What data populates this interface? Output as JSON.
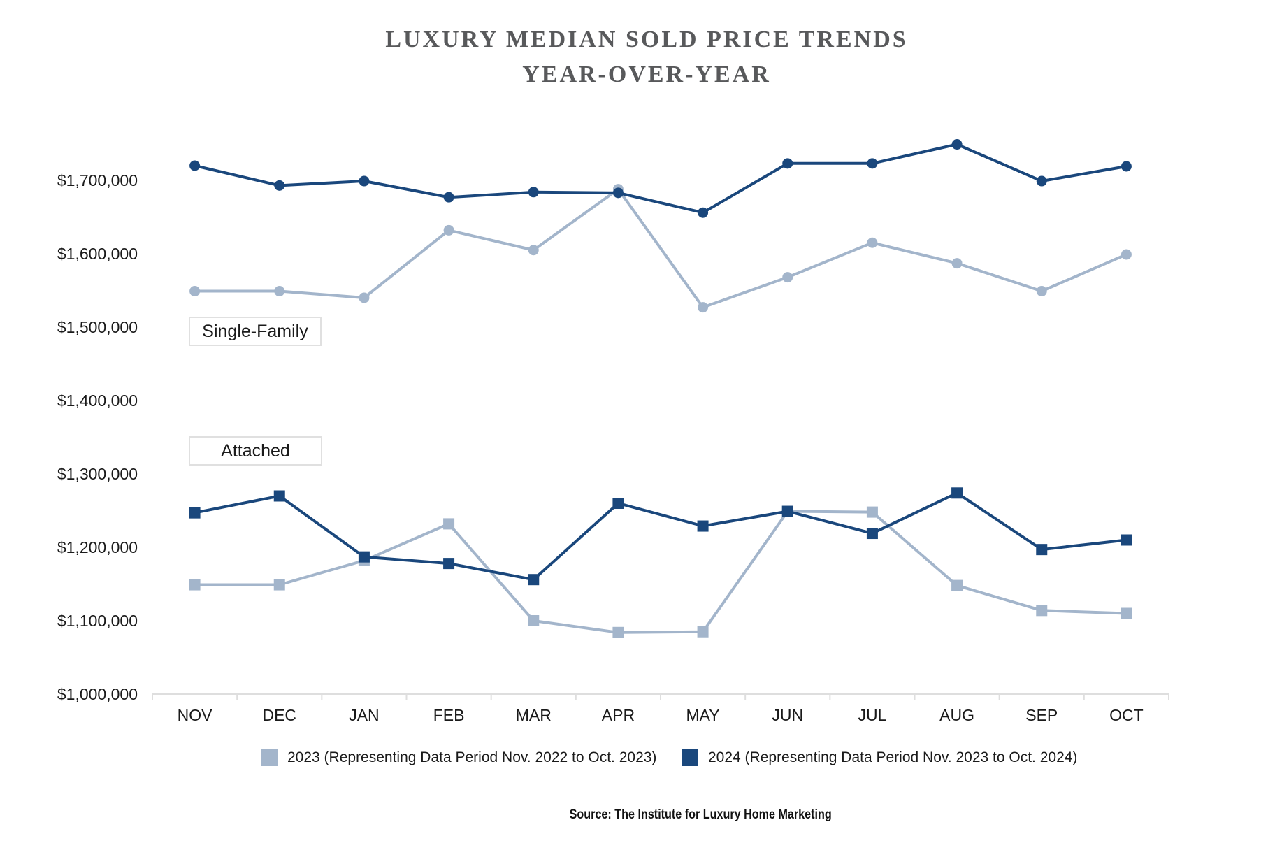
{
  "chart_data": {
    "type": "line",
    "title": "LUXURY MEDIAN SOLD PRICE TRENDS",
    "subtitle": "YEAR-OVER-YEAR",
    "xlabel": "",
    "ylabel": "",
    "categories": [
      "NOV",
      "DEC",
      "JAN",
      "FEB",
      "MAR",
      "APR",
      "MAY",
      "JUN",
      "JUL",
      "AUG",
      "SEP",
      "OCT"
    ],
    "ylim": [
      1000000,
      1750000
    ],
    "yticks": [
      1000000,
      1100000,
      1200000,
      1300000,
      1400000,
      1500000,
      1600000,
      1700000
    ],
    "ytick_labels": [
      "$1,000,000",
      "$1,100,000",
      "$1,200,000",
      "$1,300,000",
      "$1,400,000",
      "$1,500,000",
      "$1,600,000",
      "$1,700,000"
    ],
    "grid": false,
    "legend_position": "bottom",
    "panel_labels": [
      {
        "text": "Single-Family"
      },
      {
        "text": "Attached"
      }
    ],
    "series": [
      {
        "name": "Single-Family 2023",
        "group": "Single-Family",
        "year": "2023",
        "marker": "circle",
        "color": "#a3b5cb",
        "values": [
          1549000,
          1549000,
          1540000,
          1632000,
          1605000,
          1688000,
          1527000,
          1568000,
          1615000,
          1587000,
          1549000,
          1599000
        ]
      },
      {
        "name": "Single-Family 2024",
        "group": "Single-Family",
        "year": "2024",
        "marker": "circle",
        "color": "#1a477c",
        "values": [
          1720000,
          1693000,
          1699000,
          1677000,
          1684000,
          1683000,
          1656000,
          1723000,
          1723000,
          1749000,
          1699000,
          1719000
        ]
      },
      {
        "name": "Attached 2023",
        "group": "Attached",
        "year": "2023",
        "marker": "square",
        "color": "#a3b5cb",
        "values": [
          1149000,
          1149000,
          1182000,
          1232000,
          1100000,
          1084000,
          1085000,
          1249000,
          1248000,
          1148000,
          1114000,
          1110000
        ]
      },
      {
        "name": "Attached 2024",
        "group": "Attached",
        "year": "2024",
        "marker": "square",
        "color": "#1a477c",
        "values": [
          1247000,
          1270000,
          1187000,
          1178000,
          1156000,
          1260000,
          1229000,
          1249000,
          1219000,
          1274000,
          1197000,
          1210000
        ]
      }
    ],
    "legend": [
      {
        "label": "2023 (Representing Data Period Nov. 2022 to Oct. 2023)",
        "color": "#a3b5cb"
      },
      {
        "label": "2024 (Representing Data Period Nov. 2023 to Oct. 2024)",
        "color": "#1a477c"
      }
    ],
    "source": "Source: The Institute for Luxury Home Marketing"
  }
}
